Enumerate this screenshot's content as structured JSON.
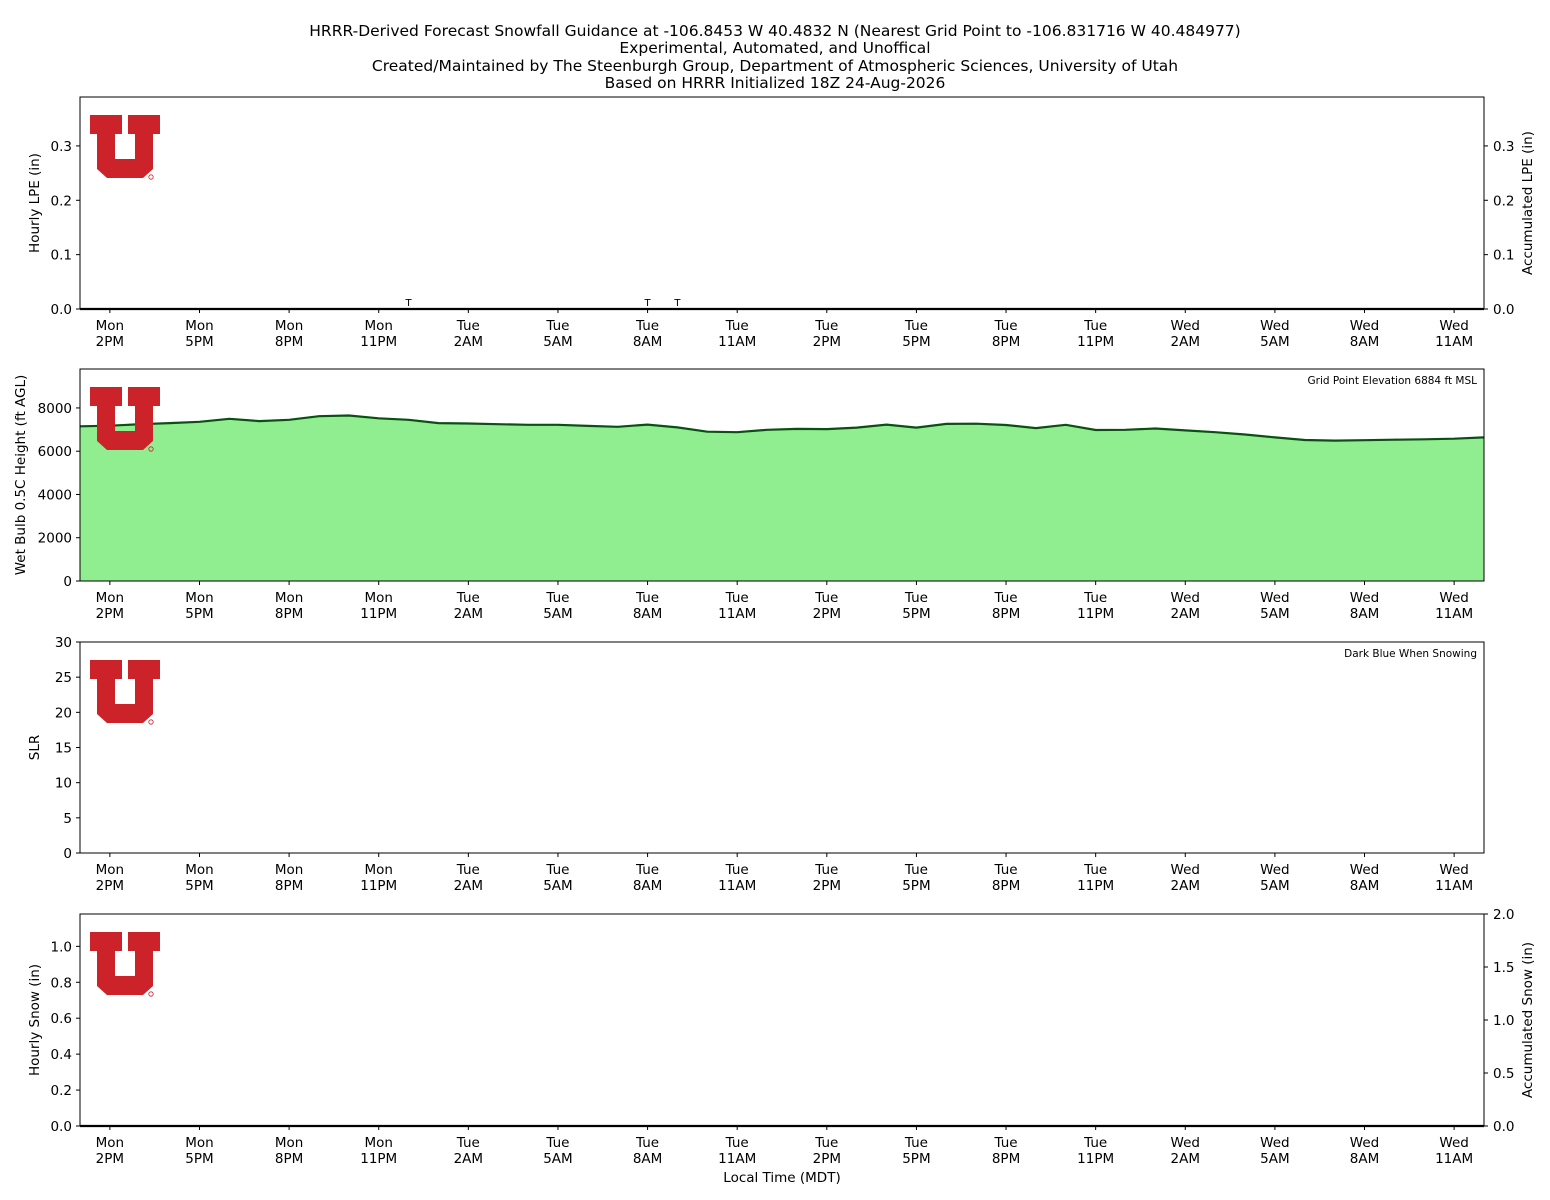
{
  "title_lines": [
    "HRRR-Derived Forecast Snowfall Guidance at -106.8453 W 40.4832 N (Nearest Grid Point to -106.831716 W 40.484977)",
    "Experimental, Automated, and Unoffical",
    "Created/Maintained by The Steenburgh Group, Department of Atmospheric Sciences, University of Utah",
    "Based on HRRR Initialized 18Z 24-Aug-2026"
  ],
  "xlabel": "Local Time (MDT)",
  "logo_color": "#cc2229",
  "chart_data": [
    {
      "type": "line",
      "name": "lpe",
      "ylabel": "Hourly LPE (in)",
      "ylabel_right": "Accumulated LPE (in)",
      "ylim": [
        0,
        0.39
      ],
      "yticks": [
        "0.0",
        "0.1",
        "0.2",
        "0.3"
      ],
      "yticks_right": [
        "0.0",
        "0.1",
        "0.2",
        "0.3"
      ],
      "xlim": [
        -1,
        46
      ],
      "x_ticks": [
        0,
        3,
        6,
        9,
        12,
        15,
        18,
        21,
        24,
        27,
        30,
        33,
        36,
        39,
        42,
        45
      ],
      "x_tick_labels": [
        [
          "Mon",
          "2PM"
        ],
        [
          "Mon",
          "5PM"
        ],
        [
          "Mon",
          "8PM"
        ],
        [
          "Mon",
          "11PM"
        ],
        [
          "Tue",
          "2AM"
        ],
        [
          "Tue",
          "5AM"
        ],
        [
          "Tue",
          "8AM"
        ],
        [
          "Tue",
          "11AM"
        ],
        [
          "Tue",
          "2PM"
        ],
        [
          "Tue",
          "5PM"
        ],
        [
          "Tue",
          "8PM"
        ],
        [
          "Tue",
          "11PM"
        ],
        [
          "Wed",
          "2AM"
        ],
        [
          "Wed",
          "5AM"
        ],
        [
          "Wed",
          "8AM"
        ],
        [
          "Wed",
          "11AM"
        ]
      ],
      "x": [
        -1,
        46
      ],
      "values": [
        0,
        0
      ],
      "trace_marks": [
        {
          "x": 10,
          "label": "T"
        },
        {
          "x": 18,
          "label": "T"
        },
        {
          "x": 19,
          "label": "T"
        }
      ]
    },
    {
      "type": "area",
      "name": "wetbulb",
      "ylabel": "Wet Bulb 0.5C Height (ft AGL)",
      "ylim": [
        0,
        9800
      ],
      "yticks": [
        "0",
        "2000",
        "4000",
        "6000",
        "8000"
      ],
      "note": "Grid Point Elevation 6884 ft MSL",
      "fill_color": "#90ee90",
      "line_color": "#0b4f12",
      "x": [
        -1,
        0,
        1,
        2,
        3,
        4,
        5,
        6,
        7,
        8,
        9,
        10,
        11,
        12,
        13,
        14,
        15,
        16,
        17,
        18,
        19,
        20,
        21,
        22,
        23,
        24,
        25,
        26,
        27,
        28,
        29,
        30,
        31,
        32,
        33,
        34,
        35,
        36,
        37,
        38,
        39,
        40,
        41,
        42,
        43,
        44,
        45,
        46
      ],
      "values": [
        7150,
        7180,
        7250,
        7300,
        7360,
        7500,
        7390,
        7450,
        7620,
        7650,
        7520,
        7450,
        7300,
        7280,
        7250,
        7220,
        7220,
        7170,
        7130,
        7230,
        7100,
        6900,
        6880,
        6990,
        7030,
        7020,
        7090,
        7230,
        7090,
        7260,
        7270,
        7210,
        7070,
        7220,
        6980,
        6990,
        7050,
        6960,
        6880,
        6770,
        6640,
        6520,
        6490,
        6510,
        6530,
        6550,
        6580,
        6640
      ]
    },
    {
      "type": "bar",
      "name": "slr",
      "ylabel": "SLR",
      "ylim": [
        0,
        30
      ],
      "yticks": [
        "0",
        "5",
        "10",
        "15",
        "20",
        "25",
        "30"
      ],
      "note": "Dark Blue When Snowing",
      "values": []
    },
    {
      "type": "line",
      "name": "snow",
      "ylabel": "Hourly Snow (in)",
      "ylabel_right": "Accumulated Snow (in)",
      "ylim": [
        0,
        1.18
      ],
      "yticks": [
        "0.0",
        "0.2",
        "0.4",
        "0.6",
        "0.8",
        "1.0"
      ],
      "ylim_right": [
        0,
        2.0
      ],
      "yticks_right": [
        "0.0",
        "0.5",
        "1.0",
        "1.5",
        "2.0"
      ],
      "x": [
        -1,
        46
      ],
      "values": [
        0,
        0
      ]
    }
  ]
}
